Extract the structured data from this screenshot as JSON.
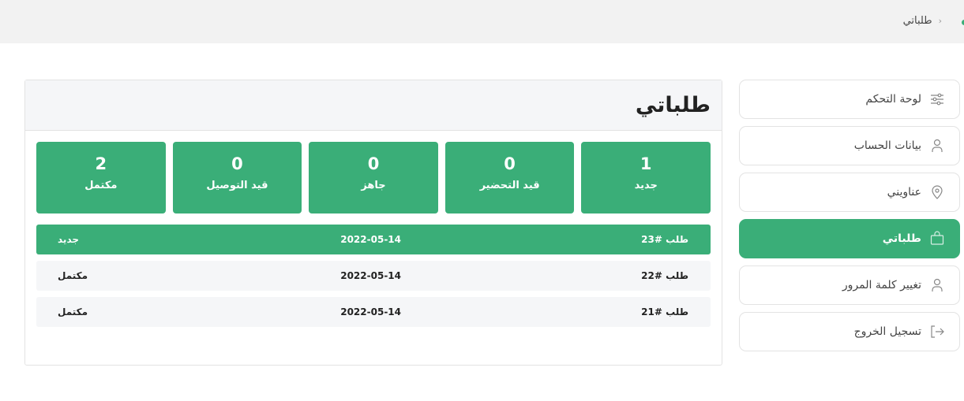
{
  "breadcrumb": {
    "current": "طلباتي"
  },
  "page": {
    "title": "طلباتي"
  },
  "stats": [
    {
      "count": "1",
      "label": "جديد"
    },
    {
      "count": "0",
      "label": "قيد التحضير"
    },
    {
      "count": "0",
      "label": "جاهز"
    },
    {
      "count": "0",
      "label": "قيد التوصيل"
    },
    {
      "count": "2",
      "label": "مكتمل"
    }
  ],
  "orders": [
    {
      "id": "طلب #23",
      "date": "2022-05-14",
      "status": "جديد"
    },
    {
      "id": "طلب #22",
      "date": "2022-05-14",
      "status": "مكتمل"
    },
    {
      "id": "طلب #21",
      "date": "2022-05-14",
      "status": "مكتمل"
    }
  ],
  "sidebar": {
    "items": [
      {
        "label": "لوحة التحكم",
        "icon": "sliders-icon"
      },
      {
        "label": "بيانات الحساب",
        "icon": "user-icon"
      },
      {
        "label": "عناويني",
        "icon": "map-pin-icon"
      },
      {
        "label": "طلباتي",
        "icon": "shopping-bag-icon"
      },
      {
        "label": "تغيير كلمة المرور",
        "icon": "user-icon"
      },
      {
        "label": "تسجيل الخروج",
        "icon": "logout-icon"
      }
    ]
  },
  "colors": {
    "accent": "#3aae78"
  }
}
